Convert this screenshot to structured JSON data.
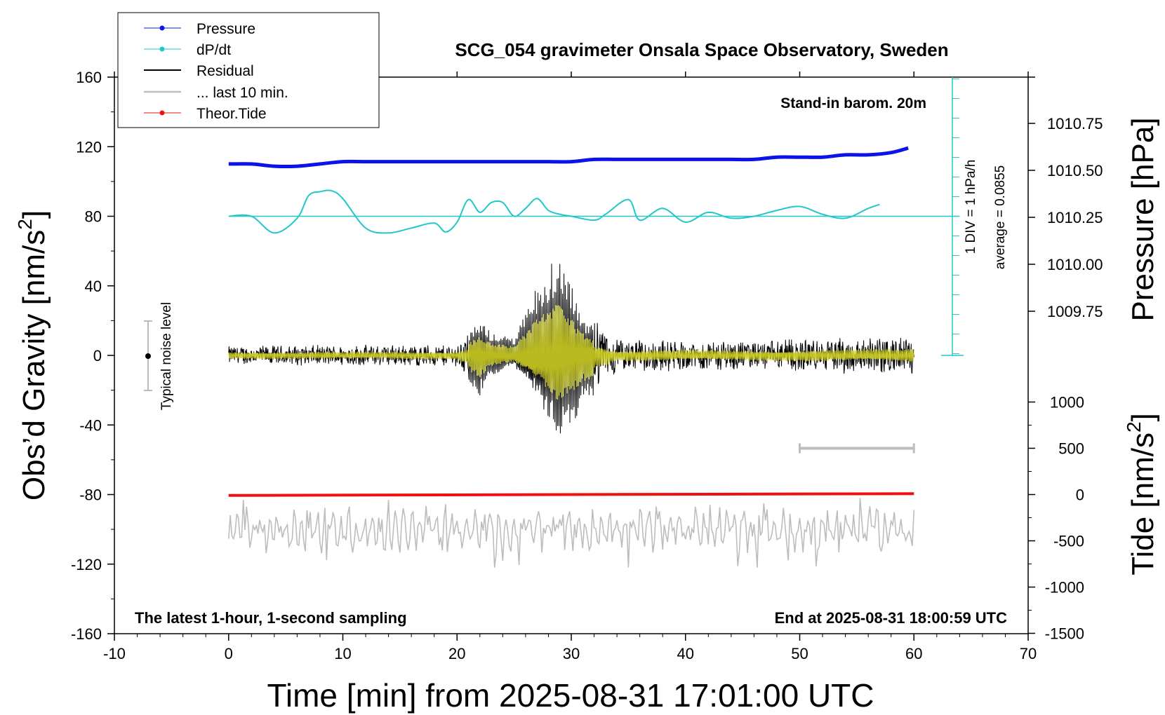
{
  "chart_data": {
    "type": "line",
    "title": "SCG_054 gravimeter Onsala Space Observatory, Sweden",
    "xlabel": "Time [min] from 2025-08-31 17:01:00 UTC",
    "ylabel_left": "Obs’d Gravity [nm/s",
    "ylabel_left_sup": "2",
    "ylabel_left_end": "]",
    "ylabel_right_top": "Pressure [hPa]",
    "ylabel_right_bottom": "Tide [nm/s",
    "ylabel_right_bottom_sup": "2",
    "ylabel_right_bottom_end": "]",
    "xlim": [
      -10,
      70
    ],
    "ylim": [
      -160,
      160
    ],
    "x_ticks": [
      "-10",
      "0",
      "10",
      "20",
      "30",
      "40",
      "50",
      "60",
      "70"
    ],
    "y_ticks": [
      "160",
      "120",
      "80",
      "40",
      "0",
      "-40",
      "-80",
      "-120",
      "-160"
    ],
    "pressure_ticks": [
      "1010.75",
      "1010.50",
      "1010.25",
      "1010.00",
      "1009.75"
    ],
    "tide_ticks": [
      "1000",
      "500",
      "0",
      "-500",
      "-1000",
      "-1500"
    ],
    "annotations": {
      "stand_in": "Stand-in barom. 20m",
      "div_label": "1 DIV = 1 hPa/h",
      "average_label": "average = 0.0855",
      "noise_label": "Typical noise level",
      "bottom_left": "The latest 1-hour, 1-second sampling",
      "bottom_right": "End at 2025-08-31 18:00:59 UTC"
    },
    "legend": {
      "placement": "top-left",
      "entries": [
        "Pressure",
        "dP/dt",
        "Residual",
        "... last 10 min.",
        "Theor.Tide"
      ]
    },
    "colors": {
      "pressure": "#0a14e6",
      "dpdt": "#22c7c7",
      "residual": "#000000",
      "last10": "#bdbdbd",
      "tide": "#ee1111",
      "filtered": "#cccc22"
    },
    "series": {
      "pressure": {
        "x": [
          0,
          2,
          4,
          6,
          8,
          10,
          12,
          14,
          16,
          18,
          20,
          22,
          24,
          26,
          28,
          30,
          32,
          34,
          36,
          38,
          40,
          42,
          44,
          46,
          48,
          50,
          52,
          54,
          56,
          58,
          59.5
        ],
        "y": [
          1010.48,
          1010.48,
          1010.47,
          1010.47,
          1010.48,
          1010.49,
          1010.49,
          1010.49,
          1010.49,
          1010.49,
          1010.49,
          1010.49,
          1010.49,
          1010.49,
          1010.49,
          1010.49,
          1010.5,
          1010.5,
          1010.5,
          1010.5,
          1010.5,
          1010.5,
          1010.5,
          1010.5,
          1010.51,
          1010.51,
          1010.51,
          1010.52,
          1010.52,
          1010.53,
          1010.55
        ]
      },
      "dpdt": {
        "x": [
          0,
          2,
          4,
          6,
          7,
          8,
          9,
          10,
          12,
          14,
          16,
          18,
          19,
          20,
          21,
          22,
          23,
          24,
          25,
          26,
          27,
          28,
          29,
          30,
          32,
          33,
          35,
          36,
          38,
          40,
          42,
          44,
          46,
          48,
          50,
          52,
          54,
          56,
          57
        ],
        "y": [
          0.0,
          0.0,
          -0.85,
          -0.1,
          1.05,
          1.25,
          1.3,
          0.9,
          -0.6,
          -0.85,
          -0.6,
          -0.35,
          -0.8,
          -0.3,
          0.85,
          0.2,
          0.7,
          0.7,
          0.0,
          0.4,
          0.9,
          0.3,
          0.1,
          0.0,
          -0.2,
          0.1,
          0.85,
          -0.2,
          0.4,
          -0.3,
          0.2,
          -0.1,
          0.0,
          0.3,
          0.5,
          0.1,
          -0.1,
          0.4,
          0.6
        ]
      },
      "residual": {
        "x_range": [
          0,
          60
        ],
        "envelope": [
          {
            "x": 0,
            "amp": 6
          },
          {
            "x": 20,
            "amp": 7
          },
          {
            "x": 22,
            "amp": 26
          },
          {
            "x": 23,
            "amp": 14
          },
          {
            "x": 25,
            "amp": 10
          },
          {
            "x": 27,
            "amp": 40
          },
          {
            "x": 29,
            "amp": 64
          },
          {
            "x": 31,
            "amp": 30
          },
          {
            "x": 34,
            "amp": 10
          },
          {
            "x": 45,
            "amp": 9
          },
          {
            "x": 60,
            "amp": 12
          }
        ],
        "max_range": [
          -62,
          68
        ]
      },
      "last10": {
        "x_range": [
          0,
          60
        ],
        "baseline": -100,
        "range": [
          -122,
          -80
        ]
      },
      "tide": {
        "x": [
          0,
          60
        ],
        "y": [
          -80.5,
          -79.5
        ]
      }
    },
    "last10_bar": {
      "x_start": 50,
      "x_end": 60,
      "y_tide": 500
    }
  }
}
